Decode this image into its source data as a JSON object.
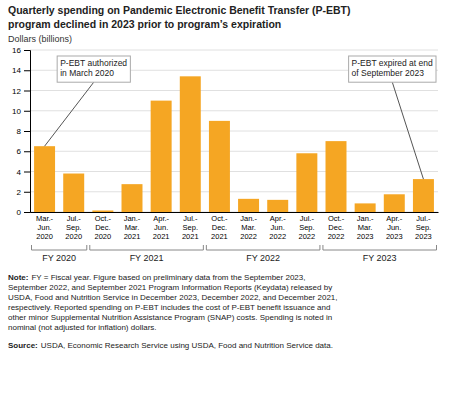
{
  "chart_data": {
    "type": "bar",
    "title": "Quarterly spending on Pandemic Electronic Benefit Transfer (P-EBT)\nprogram declined in 2023 prior to program’s expiration",
    "y_label": "Dollars (billions)",
    "categories": [
      "Mar.-\nJun.\n2020",
      "Jul.-\nSep.\n2020",
      "Oct.-\nDec.\n2020",
      "Jan.-\nMar.\n2021",
      "Apr.-\nJun.\n2021",
      "Jul.-\nSep.\n2021",
      "Oct.-\nDec.\n2021",
      "Jan.-\nMar.\n2022",
      "Apr.-\nJun.\n2022",
      "Jul.-\nSep.\n2022",
      "Oct.-\nDec.\n2022",
      "Jan.-\nMar.\n2023",
      "Apr.-\nJun.\n2023",
      "Jul.-\nSep.\n2023"
    ],
    "values": [
      6.5,
      3.8,
      0.15,
      2.75,
      11.0,
      13.4,
      9.0,
      1.3,
      1.2,
      5.8,
      7.0,
      0.85,
      1.75,
      3.25
    ],
    "color": "#F5A623",
    "ylim": [
      0,
      16
    ],
    "yticks": [
      0,
      2,
      4,
      6,
      8,
      10,
      12,
      14,
      16
    ],
    "grid": true,
    "groups": [
      {
        "label": "FY 2020",
        "first": 0,
        "last": 1
      },
      {
        "label": "FY 2021",
        "first": 2,
        "last": 5
      },
      {
        "label": "FY 2022",
        "first": 6,
        "last": 9
      },
      {
        "label": "FY 2023",
        "first": 10,
        "last": 13
      }
    ],
    "annotations": [
      {
        "text": "P-EBT authorized\nin March 2020",
        "index": 0
      },
      {
        "text": "P-EBT expired at end\nof September 2023",
        "index": 13
      }
    ],
    "note": {
      "label": "Note:",
      "text": "FY = Fiscal year. Figure based on preliminary data from the September 2023,\nSeptember 2022, and September 2021 Program Information Reports (Keydata) released by\nUSDA, Food and Nutrition Service in December 2023, December 2022, and December 2021,\nrespectively. Reported spending on P-EBT includes the cost of P-EBT benefit issuance and\nother minor Supplemental Nutrition Assistance Program (SNAP) costs. Spending is noted in\nnominal (not adjusted for inflation) dollars."
    },
    "source": {
      "label": "Source:",
      "text": "USDA, Economic Research Service using USDA, Food and Nutrition Service data."
    }
  }
}
